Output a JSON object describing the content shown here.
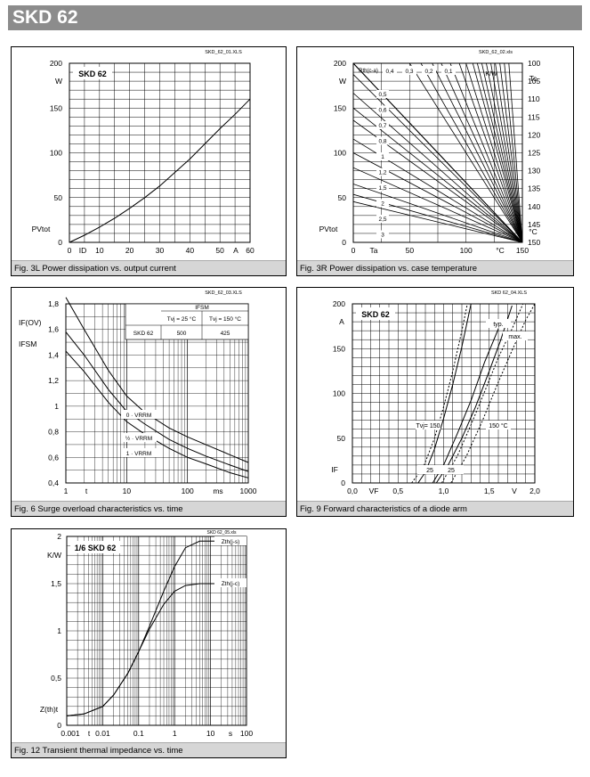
{
  "header": {
    "title": "SKD 62"
  },
  "charts": [
    {
      "id": "fig3l",
      "file": "SKD_62_01.XLS",
      "caption": "Fig. 3L Power dissipation vs. output current",
      "label": "SKD 62",
      "chart_data": {
        "type": "line",
        "xlim": [
          0,
          60
        ],
        "ylim": [
          0,
          200
        ],
        "x_ticks": [
          "0",
          "10",
          "20",
          "30",
          "40",
          "50",
          "60"
        ],
        "y_ticks": [
          "0",
          "50",
          "100",
          "150",
          "200"
        ],
        "xlabel": "ID",
        "x_unit": "A",
        "ylabel": "PVtot",
        "y_unit": "W",
        "series": [
          {
            "x": [
              0,
              5,
              10,
              15,
              20,
              25,
              30,
              35,
              40,
              45,
              50,
              55,
              60
            ],
            "y": [
              0,
              8,
              17,
              27,
              38,
              50,
              63,
              78,
              93,
              110,
              127,
              143,
              160
            ]
          }
        ]
      }
    },
    {
      "id": "fig3r",
      "file": "SKD_62_02.xls",
      "caption": "Fig. 3R Power dissipation vs. case temperature",
      "chart_data": {
        "type": "line",
        "xlim": [
          0,
          150
        ],
        "ylim": [
          0,
          200
        ],
        "x_ticks": [
          "0",
          "50",
          "100",
          "150"
        ],
        "y_ticks": [
          "0",
          "50",
          "100",
          "150",
          "200"
        ],
        "y2_ticks": [
          "150",
          "145",
          "140",
          "135",
          "130",
          "125",
          "120",
          "115",
          "110",
          "105",
          "100"
        ],
        "xlabel": "Ta",
        "x_unit": "°C",
        "ylabel": "PVtot",
        "y_unit": "W",
        "y2label": "Tc",
        "y2_unit": "°C",
        "rth_label": "Rth(c-a)",
        "rth_unit": "K/W",
        "rth_labels_top": [
          "0,4",
          "0,3",
          "0,2",
          "0,1"
        ],
        "rth_labels_side": [
          "0,5",
          "0,6",
          "0,7",
          "0,8",
          "1",
          "1,2",
          "1,5",
          "2",
          "2,5",
          "3"
        ],
        "rth_values": [
          0.1,
          0.2,
          0.3,
          0.4,
          0.5,
          0.6,
          0.7,
          0.8,
          1,
          1.2,
          1.5,
          2,
          2.5,
          3
        ],
        "case_lines": [
          0.06,
          0.08,
          0.1,
          0.12,
          0.14,
          0.16,
          0.18,
          0.2,
          0.22,
          0.25,
          0.28,
          0.32,
          0.36,
          0.4,
          0.45,
          0.5
        ]
      }
    },
    {
      "id": "fig6",
      "file": "SKD_62_03.XLS",
      "caption": "Fig. 6 Surge overload characteristics vs. time",
      "table": {
        "head": "IFSM",
        "c1": "Tvj = 25 °C",
        "c2": "Tvj = 150 °C",
        "r": "SKD 62",
        "v1": "500",
        "v2": "425"
      },
      "chart_data": {
        "type": "line",
        "xscale": "log",
        "xlim": [
          1,
          1000
        ],
        "ylim": [
          0.4,
          1.8
        ],
        "x_ticks": [
          "1",
          "10",
          "100",
          "1000"
        ],
        "y_ticks": [
          "0,4",
          "0,6",
          "0,8",
          "1",
          "1,2",
          "1,4",
          "1,6",
          "1,8"
        ],
        "xlabel": "t",
        "x_unit": "ms",
        "ylabel_top": "IF(OV)",
        "ylabel_bottom": "IFSM",
        "series": [
          {
            "name": "0 · VRRM",
            "x": [
              1,
              2,
              5,
              10,
              20,
              50,
              100,
              200,
              500,
              1000
            ],
            "y": [
              1.85,
              1.6,
              1.28,
              1.08,
              0.95,
              0.83,
              0.76,
              0.7,
              0.62,
              0.56
            ]
          },
          {
            "name": "½ · VRRM",
            "x": [
              1,
              2,
              5,
              10,
              20,
              50,
              100,
              200,
              500,
              1000
            ],
            "y": [
              1.58,
              1.4,
              1.13,
              0.96,
              0.86,
              0.74,
              0.67,
              0.61,
              0.54,
              0.49
            ]
          },
          {
            "name": "1 · VRRM",
            "x": [
              1,
              2,
              5,
              10,
              20,
              50,
              100,
              200,
              500,
              1000
            ],
            "y": [
              1.43,
              1.27,
              1.03,
              0.88,
              0.78,
              0.67,
              0.6,
              0.55,
              0.48,
              0.44
            ]
          }
        ]
      }
    },
    {
      "id": "fig9",
      "file": "SKD 62_04.XLS",
      "caption": "Fig. 9 Forward characteristics of a diode arm",
      "label": "SKD 62",
      "chart_data": {
        "type": "line",
        "xlim": [
          0,
          2
        ],
        "ylim": [
          0,
          200
        ],
        "x_ticks": [
          "0,0",
          "0,5",
          "1,0",
          "1,5",
          "2,0"
        ],
        "y_ticks": [
          "0",
          "50",
          "100",
          "150",
          "200"
        ],
        "xlabel": "VF",
        "x_unit": "V",
        "ylabel": "IF",
        "y_unit": "A",
        "annotations": [
          "typ.",
          "max.",
          "Tvj= 150",
          "150 °C",
          "25",
          "25"
        ],
        "series": [
          {
            "x": [
              0.72,
              0.8,
              0.9,
              1,
              1.1,
              1.2,
              1.3
            ],
            "y": [
              0,
              12,
              38,
              72,
              110,
              152,
              200
            ]
          },
          {
            "x": [
              0.92,
              1.05,
              1.2,
              1.35,
              1.5,
              1.62,
              1.75
            ],
            "y": [
              0,
              20,
              50,
              85,
              125,
              158,
              198
            ]
          },
          {
            "x": [
              0.65,
              0.78,
              0.9,
              1,
              1.1,
              1.2,
              1.26
            ],
            "y": [
              0,
              18,
              50,
              85,
              125,
              170,
              200
            ]
          },
          {
            "x": [
              0.98,
              1.15,
              1.3,
              1.45,
              1.6,
              1.75,
              1.87
            ],
            "y": [
              0,
              30,
              65,
              102,
              140,
              172,
              200
            ]
          },
          {
            "x": [
              0.88,
              1,
              1.15,
              1.3,
              1.45,
              1.6
            ],
            "y": [
              0,
              20,
              55,
              92,
              135,
              172
            ]
          },
          {
            "x": [
              1.08,
              1.25,
              1.42,
              1.58,
              1.75,
              1.9,
              2
            ],
            "y": [
              0,
              30,
              68,
              108,
              148,
              182,
              200
            ]
          }
        ]
      }
    },
    {
      "id": "fig12",
      "file": "SKD 62_05.xls",
      "caption": "Fig. 12 Transient thermal impedance vs. time",
      "label": "1/6 SKD 62",
      "chart_data": {
        "type": "line",
        "xscale": "log",
        "xlim": [
          0.001,
          100
        ],
        "ylim": [
          0,
          2
        ],
        "x_ticks": [
          "0.001",
          "0.01",
          "0.1",
          "1",
          "10",
          "100"
        ],
        "y_ticks": [
          "0",
          "0,5",
          "1",
          "1,5",
          "2"
        ],
        "xlabel": "t",
        "x_unit": "s",
        "ylabel": "Z(th)t",
        "y_unit": "K/W",
        "series": [
          {
            "name": "Zth(j-s)",
            "x": [
              0.001,
              0.003,
              0.01,
              0.02,
              0.05,
              0.1,
              0.2,
              0.5,
              1,
              2,
              5,
              10,
              100
            ],
            "y": [
              0.1,
              0.12,
              0.2,
              0.32,
              0.55,
              0.78,
              1.05,
              1.42,
              1.68,
              1.88,
              1.95,
              1.95,
              1.95
            ]
          },
          {
            "name": "Zth(j-c)",
            "x": [
              0.001,
              0.003,
              0.01,
              0.02,
              0.05,
              0.1,
              0.2,
              0.5,
              1,
              2,
              5,
              10,
              100
            ],
            "y": [
              0.1,
              0.12,
              0.2,
              0.32,
              0.55,
              0.78,
              1.02,
              1.28,
              1.42,
              1.48,
              1.5,
              1.5,
              1.5
            ]
          }
        ]
      }
    }
  ]
}
